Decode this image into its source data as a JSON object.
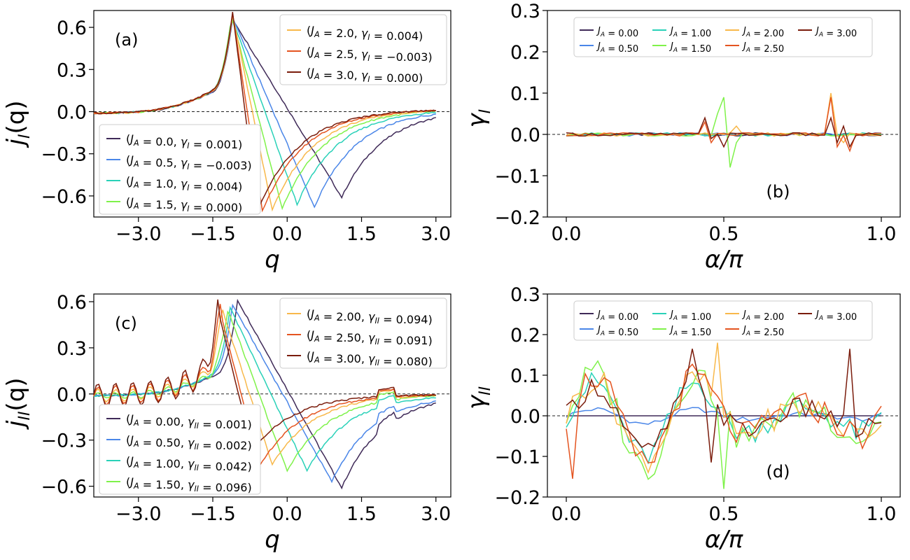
{
  "colors": [
    "#3f2a58",
    "#4a86e8",
    "#29d1b8",
    "#7ff24a",
    "#f8b84a",
    "#e45420",
    "#7a1c0c"
  ],
  "chart_data": [
    {
      "id": "a",
      "type": "line",
      "panel_label": "(a)",
      "xlabel": "q",
      "ylabel": "j_I(q)",
      "ylabel_main": "j",
      "ylabel_sub": "I",
      "ylabel_tail": "(q)",
      "xlim": [
        -3.9,
        3.3
      ],
      "ylim": [
        -0.75,
        0.72
      ],
      "xticks": [
        -3.0,
        -1.5,
        0.0,
        1.5,
        3.0
      ],
      "xtick_labels": [
        "−3.0",
        "−1.5",
        "0.0",
        "1.5",
        "3.0"
      ],
      "yticks": [
        -0.6,
        -0.3,
        0.0,
        0.3,
        0.6
      ],
      "ytick_labels": [
        "−0.6",
        "−0.3",
        "0.0",
        "0.3",
        "0.6"
      ],
      "legend_upper": [
        "(J_A = 2.0,  γ_I = 0.004)",
        "(J_A = 2.5,  γ_I = −0.003)",
        "(J_A = 3.0,  γ_I = 0.000)"
      ],
      "legend_lower": [
        "(J_A = 0.0,  γ_I = 0.001)",
        "(J_A = 0.5,  γ_I = −0.003)",
        "(J_A = 1.0,  γ_I = 0.004)",
        "(J_A = 1.5,  γ_I = 0.000)"
      ],
      "series": [
        {
          "name": "J_A = 0.0",
          "peak": [
            -1.1,
            0.66
          ],
          "min": [
            1.1,
            -0.61
          ]
        },
        {
          "name": "J_A = 0.5",
          "peak": [
            -1.1,
            0.67
          ],
          "min": [
            0.55,
            -0.68
          ]
        },
        {
          "name": "J_A = 1.0",
          "peak": [
            -1.12,
            0.68
          ],
          "min": [
            0.2,
            -0.66
          ]
        },
        {
          "name": "J_A = 1.5",
          "peak": [
            -1.12,
            0.68
          ],
          "min": [
            -0.1,
            -0.69
          ]
        },
        {
          "name": "J_A = 2.0",
          "peak": [
            -1.1,
            0.69
          ],
          "min": [
            -0.3,
            -0.7
          ]
        },
        {
          "name": "J_A = 2.5",
          "peak": [
            -1.1,
            0.7
          ],
          "min": [
            -0.5,
            -0.71
          ]
        },
        {
          "name": "J_A = 3.0",
          "peak": [
            -1.1,
            0.71
          ],
          "min": [
            -0.6,
            -0.71
          ]
        }
      ]
    },
    {
      "id": "b",
      "type": "line",
      "panel_label": "(b)",
      "xlabel": "α/π",
      "ylabel": "γ_I",
      "ylabel_main": "γ",
      "ylabel_sub": "I",
      "xlim": [
        -0.06,
        1.06
      ],
      "ylim": [
        -0.2,
        0.3
      ],
      "xticks": [
        0.0,
        0.5,
        1.0
      ],
      "xtick_labels": [
        "0.0",
        "0.5",
        "1.0"
      ],
      "yticks": [
        -0.2,
        -0.1,
        0.0,
        0.1,
        0.2,
        0.3
      ],
      "ytick_labels": [
        "−0.2",
        "−0.1",
        "0.0",
        "0.1",
        "0.2",
        "0.3"
      ],
      "legend": [
        "J_A = 0.00",
        "J_A = 1.00",
        "J_A = 2.00",
        "J_A = 3.00",
        "J_A = 0.50",
        "J_A = 1.50",
        "J_A = 2.50"
      ],
      "legend_colors": [
        0,
        2,
        4,
        6,
        1,
        3,
        5
      ],
      "series": [
        {
          "name": "J_A = 0.00",
          "spikes": []
        },
        {
          "name": "J_A = 0.50",
          "spikes": []
        },
        {
          "name": "J_A = 1.00",
          "spikes": []
        },
        {
          "name": "J_A = 1.50",
          "spikes": [
            [
              0.48,
              0.05
            ],
            [
              0.5,
              0.09
            ],
            [
              0.52,
              -0.08
            ],
            [
              0.54,
              -0.02
            ]
          ]
        },
        {
          "name": "J_A = 2.00",
          "spikes": [
            [
              0.54,
              0.02
            ],
            [
              0.84,
              0.1
            ],
            [
              0.88,
              -0.02
            ]
          ]
        },
        {
          "name": "J_A = 2.50",
          "spikes": [
            [
              0.44,
              0.03
            ],
            [
              0.46,
              -0.02
            ],
            [
              0.84,
              0.09
            ],
            [
              0.86,
              -0.03
            ],
            [
              0.9,
              -0.04
            ]
          ]
        },
        {
          "name": "J_A = 3.00",
          "spikes": [
            [
              0.44,
              0.04
            ],
            [
              0.46,
              -0.01
            ],
            [
              0.5,
              -0.03
            ],
            [
              0.84,
              0.04
            ],
            [
              0.86,
              -0.02
            ],
            [
              0.88,
              0.02
            ],
            [
              0.9,
              -0.03
            ]
          ]
        }
      ]
    },
    {
      "id": "c",
      "type": "line",
      "panel_label": "(c)",
      "xlabel": "q",
      "ylabel": "j_II(q)",
      "ylabel_main": "j",
      "ylabel_sub": "II",
      "ylabel_tail": "(q)",
      "xlim": [
        -3.9,
        3.3
      ],
      "ylim": [
        -0.67,
        0.65
      ],
      "xticks": [
        -3.0,
        -1.5,
        0.0,
        1.5,
        3.0
      ],
      "xtick_labels": [
        "−3.0",
        "−1.5",
        "0.0",
        "1.5",
        "3.0"
      ],
      "yticks": [
        -0.6,
        -0.3,
        0.0,
        0.3,
        0.6
      ],
      "ytick_labels": [
        "−0.6",
        "−0.3",
        "0.0",
        "0.3",
        "0.6"
      ],
      "legend_upper": [
        "(J_A = 2.00,  γ_II = 0.094)",
        "(J_A = 2.50,  γ_II = 0.091)",
        "(J_A = 3.00,  γ_II = 0.080)"
      ],
      "legend_lower": [
        "(J_A = 0.00,  γ_II = 0.001)",
        "(J_A = 0.50,  γ_II = 0.002)",
        "(J_A = 1.00,  γ_II = 0.042)",
        "(J_A = 1.50,  γ_II = 0.096)"
      ],
      "series": [
        {
          "name": "J_A = 0.00",
          "peak": [
            -1.0,
            0.61
          ],
          "min": [
            1.1,
            -0.61
          ]
        },
        {
          "name": "J_A = 0.50",
          "peak": [
            -1.1,
            0.58
          ],
          "min": [
            0.9,
            -0.57
          ]
        },
        {
          "name": "J_A = 1.00",
          "peak": [
            -1.15,
            0.56
          ],
          "min": [
            0.4,
            -0.5
          ]
        },
        {
          "name": "J_A = 1.50",
          "peak": [
            -1.2,
            0.55
          ],
          "min": [
            0.0,
            -0.5
          ]
        },
        {
          "name": "J_A = 2.00",
          "peak": [
            -1.3,
            0.54
          ],
          "min": [
            -0.3,
            -0.46
          ]
        },
        {
          "name": "J_A = 2.50",
          "peak": [
            -1.35,
            0.53
          ],
          "min": [
            -0.55,
            -0.47
          ]
        },
        {
          "name": "J_A = 3.00",
          "peak": [
            -1.4,
            0.55
          ],
          "min": [
            -0.7,
            -0.37
          ]
        }
      ]
    },
    {
      "id": "d",
      "type": "line",
      "panel_label": "(d)",
      "xlabel": "α/π",
      "ylabel": "γ_II",
      "ylabel_main": "γ",
      "ylabel_sub": "II",
      "xlim": [
        -0.06,
        1.06
      ],
      "ylim": [
        -0.2,
        0.3
      ],
      "xticks": [
        0.0,
        0.5,
        1.0
      ],
      "xtick_labels": [
        "0.0",
        "0.5",
        "1.0"
      ],
      "yticks": [
        -0.2,
        -0.1,
        0.0,
        0.1,
        0.2,
        0.3
      ],
      "ytick_labels": [
        "−0.2",
        "−0.1",
        "0.0",
        "0.1",
        "0.2",
        "0.3"
      ],
      "legend": [
        "J_A = 0.00",
        "J_A = 1.00",
        "J_A = 2.00",
        "J_A = 3.00",
        "J_A = 0.50",
        "J_A = 1.50",
        "J_A = 2.50"
      ],
      "legend_colors": [
        0,
        2,
        4,
        6,
        1,
        3,
        5
      ],
      "series": [
        {
          "name": "J_A = 0.00",
          "amp": 0.0
        },
        {
          "name": "J_A = 0.50",
          "amp": 0.02
        },
        {
          "name": "J_A = 1.00",
          "amp": 0.1
        },
        {
          "name": "J_A = 1.50",
          "amp": 0.13
        },
        {
          "name": "J_A = 2.00",
          "amp": 0.11
        },
        {
          "name": "J_A = 2.50",
          "amp": 0.12
        },
        {
          "name": "J_A = 3.00",
          "amp": 0.09
        }
      ]
    }
  ]
}
